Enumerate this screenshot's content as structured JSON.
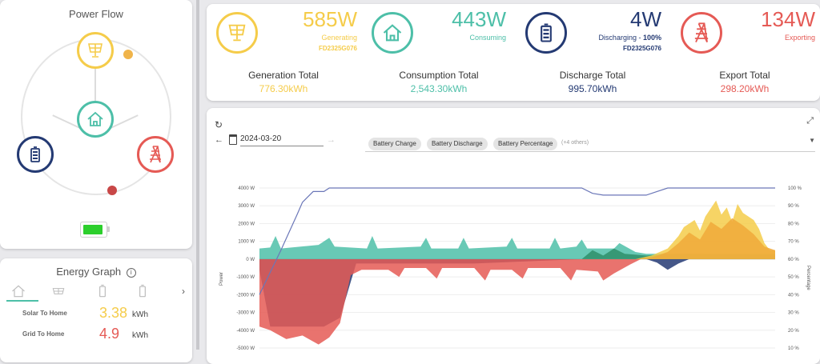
{
  "power_flow": {
    "title": "Power Flow"
  },
  "energy_graph": {
    "title": "Energy Graph",
    "rows": [
      {
        "label": "Solar To Home",
        "value": "3.38",
        "unit": "kWh",
        "color": "#f5cc4a"
      },
      {
        "label": "Grid To Home",
        "value": "4.9",
        "unit": "kWh",
        "color": "#e55a55"
      }
    ]
  },
  "summary": {
    "generation": {
      "value": "585W",
      "label": "Generating",
      "id": "FD2325G076",
      "color": "#f5cc4a"
    },
    "consumption": {
      "value": "443W",
      "label": "Consuming",
      "color": "#4dbfa8"
    },
    "battery": {
      "value": "4W",
      "label": "Discharging - ",
      "pct": "100%",
      "id": "FD2325G076",
      "color": "#243a73"
    },
    "export": {
      "value": "134W",
      "label": "Exporting",
      "color": "#e55a55"
    }
  },
  "totals": [
    {
      "label": "Generation Total",
      "value": "776.30kWh",
      "color": "#f5cc4a"
    },
    {
      "label": "Consumption Total",
      "value": "2,543.30kWh",
      "color": "#4dbfa8"
    },
    {
      "label": "Discharge Total",
      "value": "995.70kWh",
      "color": "#243a73"
    },
    {
      "label": "Export Total",
      "value": "298.20kWh",
      "color": "#e55a55"
    }
  ],
  "chart_controls": {
    "date": "2024-03-20",
    "chips": [
      "Battery Charge",
      "Battery Discharge",
      "Battery Percentage"
    ],
    "more": "(+4 others)"
  },
  "chart_data": {
    "type": "area",
    "x_range": [
      0,
      96
    ],
    "y_left": {
      "label": "Power",
      "ticks": [
        "4000 W",
        "3000 W",
        "2000 W",
        "1000 W",
        "0 W",
        "-1000 W",
        "-2000 W",
        "-3000 W",
        "-4000 W",
        "-5000 W"
      ],
      "ylim": [
        -5000,
        4000
      ]
    },
    "y_right": {
      "label": "Percentage",
      "ticks": [
        "100 %",
        "90 %",
        "80 %",
        "70 %",
        "60 %",
        "50 %",
        "40 %",
        "30 %",
        "20 %",
        "10 %"
      ],
      "ylim": [
        10,
        100
      ]
    },
    "series": [
      {
        "color": "#243a73",
        "kind": "area",
        "values": [
          [
            0,
            -600
          ],
          [
            2,
            -3800
          ],
          [
            8,
            -3800
          ],
          [
            12,
            -3800
          ],
          [
            15,
            -3300
          ],
          [
            18,
            -250
          ],
          [
            40,
            -250
          ],
          [
            60,
            0
          ],
          [
            72,
            0
          ],
          [
            74,
            -200
          ],
          [
            76,
            -600
          ],
          [
            78,
            -250
          ],
          [
            80,
            0
          ],
          [
            96,
            0
          ]
        ]
      },
      {
        "color": "#e55a55",
        "kind": "area",
        "values": [
          [
            0,
            -3800
          ],
          [
            2,
            -4000
          ],
          [
            5,
            -4500
          ],
          [
            8,
            -4300
          ],
          [
            11,
            -4800
          ],
          [
            13,
            -4400
          ],
          [
            15,
            -3600
          ],
          [
            17,
            -900
          ],
          [
            19,
            -600
          ],
          [
            24,
            -600
          ],
          [
            26,
            -1000
          ],
          [
            27,
            -500
          ],
          [
            31,
            -500
          ],
          [
            33,
            -1100
          ],
          [
            34,
            -500
          ],
          [
            40,
            -500
          ],
          [
            42,
            -1200
          ],
          [
            43,
            -600
          ],
          [
            47,
            -600
          ],
          [
            49,
            -1100
          ],
          [
            50,
            -500
          ],
          [
            56,
            -500
          ],
          [
            58,
            -1200
          ],
          [
            59,
            -600
          ],
          [
            63,
            -700
          ],
          [
            64,
            -1200
          ],
          [
            66,
            -800
          ],
          [
            69,
            -300
          ],
          [
            71,
            0
          ],
          [
            96,
            0
          ]
        ]
      },
      {
        "color": "#4dbfa8",
        "kind": "area",
        "values": [
          [
            0,
            600
          ],
          [
            2,
            650
          ],
          [
            3,
            1300
          ],
          [
            4,
            600
          ],
          [
            11,
            800
          ],
          [
            13,
            1200
          ],
          [
            14,
            700
          ],
          [
            20,
            600
          ],
          [
            21,
            1300
          ],
          [
            22,
            600
          ],
          [
            30,
            700
          ],
          [
            31,
            1200
          ],
          [
            32,
            600
          ],
          [
            37,
            600
          ],
          [
            38,
            1200
          ],
          [
            39,
            600
          ],
          [
            46,
            700
          ],
          [
            47,
            1200
          ],
          [
            48,
            600
          ],
          [
            54,
            600
          ],
          [
            55,
            1200
          ],
          [
            56,
            600
          ],
          [
            59,
            700
          ],
          [
            60,
            1100
          ],
          [
            61,
            600
          ],
          [
            66,
            600
          ],
          [
            67,
            900
          ],
          [
            70,
            400
          ],
          [
            72,
            300
          ],
          [
            96,
            300
          ]
        ]
      },
      {
        "color": "#2f8f6a",
        "kind": "area",
        "values": [
          [
            60,
            0
          ],
          [
            62,
            500
          ],
          [
            64,
            200
          ],
          [
            66,
            600
          ],
          [
            68,
            300
          ],
          [
            72,
            200
          ],
          [
            80,
            300
          ],
          [
            84,
            250
          ],
          [
            96,
            200
          ]
        ]
      },
      {
        "color": "#f5cc4a",
        "kind": "area",
        "values": [
          [
            70,
            0
          ],
          [
            73,
            200
          ],
          [
            76,
            600
          ],
          [
            78,
            1300
          ],
          [
            79,
            1800
          ],
          [
            81,
            2200
          ],
          [
            82,
            1600
          ],
          [
            83,
            2400
          ],
          [
            85,
            3300
          ],
          [
            86,
            2500
          ],
          [
            87,
            2900
          ],
          [
            88,
            2100
          ],
          [
            89,
            3100
          ],
          [
            90,
            2600
          ],
          [
            92,
            2200
          ],
          [
            93,
            1700
          ],
          [
            94,
            900
          ],
          [
            95,
            500
          ],
          [
            96,
            500
          ]
        ]
      },
      {
        "color": "#f0a93a",
        "kind": "area",
        "values": [
          [
            70,
            0
          ],
          [
            73,
            100
          ],
          [
            76,
            400
          ],
          [
            78,
            900
          ],
          [
            80,
            1500
          ],
          [
            82,
            1100
          ],
          [
            84,
            2100
          ],
          [
            86,
            1700
          ],
          [
            88,
            2300
          ],
          [
            90,
            1900
          ],
          [
            92,
            1400
          ],
          [
            94,
            700
          ],
          [
            96,
            500
          ]
        ]
      },
      {
        "color": "#6b77b8",
        "kind": "line",
        "axis": "right",
        "values": [
          [
            0,
            40
          ],
          [
            4,
            65
          ],
          [
            7,
            85
          ],
          [
            8,
            92
          ],
          [
            9,
            95
          ],
          [
            10,
            98
          ],
          [
            12,
            98
          ],
          [
            13,
            100
          ],
          [
            60,
            100
          ],
          [
            62,
            97
          ],
          [
            64,
            96
          ],
          [
            72,
            96
          ],
          [
            74,
            98
          ],
          [
            76,
            100
          ],
          [
            96,
            100
          ]
        ]
      }
    ]
  }
}
